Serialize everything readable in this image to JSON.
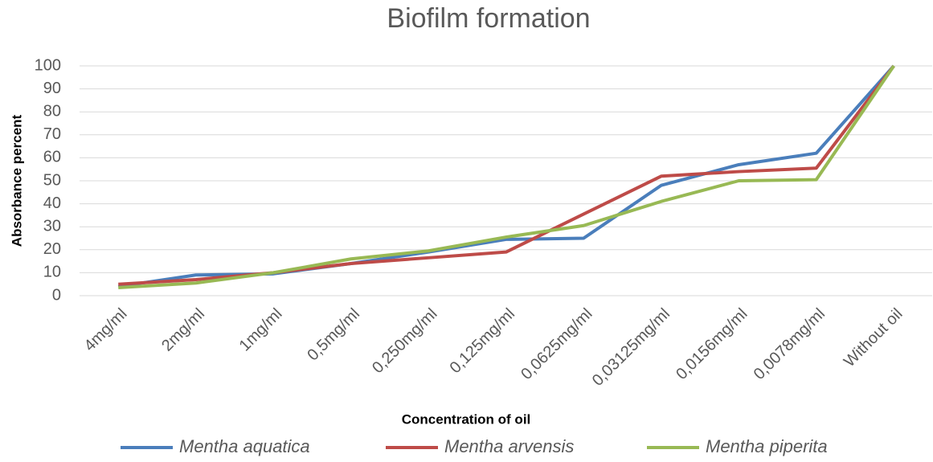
{
  "chart_data": {
    "type": "line",
    "title": "Biofilm formation",
    "x_label": "Concentration of oil",
    "y_label": "Absorbance percent",
    "categories": [
      "4mg/ml",
      "2mg/ml",
      "1mg/ml",
      "0,5mg/ml",
      "0,250mg/ml",
      "0,125mg/ml",
      "0,0625mg/ml",
      "0,03125mg/ml",
      "0,0156mg/ml",
      "0,0078mg/ml",
      "Without oil"
    ],
    "series": [
      {
        "name": "Mentha aquatica",
        "color": "#4a7ebb",
        "values": [
          4,
          9,
          9.5,
          14,
          19,
          24.5,
          25,
          48,
          57,
          62,
          100
        ]
      },
      {
        "name": "Mentha arvensis",
        "color": "#be4b48",
        "values": [
          5,
          7,
          10,
          14,
          16.5,
          19,
          35.5,
          52,
          54,
          55.5,
          100
        ]
      },
      {
        "name": "Mentha piperita",
        "color": "#98b954",
        "values": [
          3.5,
          5.5,
          10,
          16,
          19.5,
          25.5,
          30.5,
          41,
          50,
          50.5,
          100
        ]
      }
    ],
    "ylim": [
      0,
      100
    ],
    "yticks": [
      0,
      10,
      20,
      30,
      40,
      50,
      60,
      70,
      80,
      90,
      100
    ],
    "grid": true,
    "legend": "bottom"
  }
}
